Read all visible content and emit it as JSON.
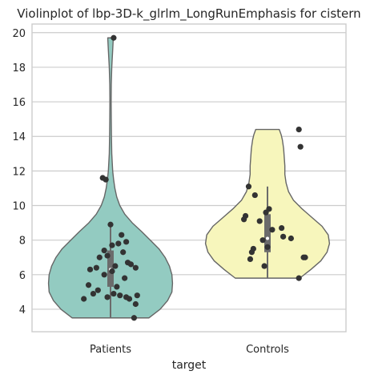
{
  "chart_data": {
    "type": "violin",
    "title": "Violinplot of lbp-3D-k_glrlm_LongRunEmphasis for cistern",
    "xlabel": "target",
    "ylabel": "",
    "ylim": [
      2.7,
      20.5
    ],
    "yticks": [
      4,
      6,
      8,
      10,
      12,
      14,
      16,
      18,
      20
    ],
    "grid": "horizontal",
    "categories": [
      "Patients",
      "Controls"
    ],
    "colors": {
      "Patients": "#93cbc1",
      "Controls": "#f7f6bc",
      "outline": "#666666",
      "box": "#6b6b6b",
      "point": "#333333",
      "grid": "#cccccc",
      "frame": "#cccccc"
    },
    "violins": [
      {
        "category": "Patients",
        "profile": [
          [
            3.5,
            0.62
          ],
          [
            4.0,
            0.8
          ],
          [
            4.5,
            0.92
          ],
          [
            5.0,
            0.99
          ],
          [
            5.5,
            1.0
          ],
          [
            6.0,
            0.99
          ],
          [
            6.5,
            0.95
          ],
          [
            7.0,
            0.88
          ],
          [
            7.5,
            0.78
          ],
          [
            8.0,
            0.64
          ],
          [
            8.5,
            0.5
          ],
          [
            9.0,
            0.35
          ],
          [
            9.5,
            0.23
          ],
          [
            10.0,
            0.15
          ],
          [
            10.5,
            0.1
          ],
          [
            11.0,
            0.07
          ],
          [
            11.5,
            0.05
          ],
          [
            12.0,
            0.035
          ],
          [
            13.0,
            0.02
          ],
          [
            14.0,
            0.015
          ],
          [
            15.0,
            0.012
          ],
          [
            16.0,
            0.01
          ],
          [
            17.0,
            0.012
          ],
          [
            18.0,
            0.02
          ],
          [
            19.0,
            0.035
          ],
          [
            19.7,
            0.045
          ]
        ],
        "box": {
          "q1": 5.3,
          "median": 6.3,
          "q3": 7.4,
          "whisker_low": 3.5,
          "whisker_high": 8.9
        },
        "points": [
          [
            0.02,
            19.7
          ],
          [
            -0.05,
            11.6
          ],
          [
            -0.03,
            11.5
          ],
          [
            0.0,
            8.9
          ],
          [
            0.07,
            8.3
          ],
          [
            0.1,
            7.9
          ],
          [
            0.05,
            7.8
          ],
          [
            0.01,
            7.7
          ],
          [
            -0.04,
            7.4
          ],
          [
            0.08,
            7.3
          ],
          [
            -0.02,
            7.1
          ],
          [
            -0.07,
            7.0
          ],
          [
            0.11,
            6.7
          ],
          [
            0.13,
            6.6
          ],
          [
            0.03,
            6.5
          ],
          [
            -0.09,
            6.4
          ],
          [
            0.16,
            6.4
          ],
          [
            -0.13,
            6.3
          ],
          [
            0.01,
            6.2
          ],
          [
            -0.04,
            6.0
          ],
          [
            0.09,
            5.8
          ],
          [
            -0.14,
            5.4
          ],
          [
            0.04,
            5.3
          ],
          [
            -0.08,
            5.1
          ],
          [
            -0.11,
            4.9
          ],
          [
            0.02,
            4.9
          ],
          [
            0.06,
            4.8
          ],
          [
            0.17,
            4.8
          ],
          [
            -0.02,
            4.7
          ],
          [
            0.1,
            4.7
          ],
          [
            -0.17,
            4.6
          ],
          [
            0.12,
            4.6
          ],
          [
            0.16,
            4.3
          ],
          [
            0.15,
            3.5
          ]
        ]
      },
      {
        "category": "Controls",
        "profile": [
          [
            5.8,
            0.52
          ],
          [
            6.3,
            0.7
          ],
          [
            6.8,
            0.86
          ],
          [
            7.3,
            0.96
          ],
          [
            7.8,
            1.0
          ],
          [
            8.3,
            0.98
          ],
          [
            8.8,
            0.88
          ],
          [
            9.3,
            0.72
          ],
          [
            9.8,
            0.56
          ],
          [
            10.3,
            0.42
          ],
          [
            10.8,
            0.34
          ],
          [
            11.3,
            0.3
          ],
          [
            11.8,
            0.28
          ],
          [
            12.3,
            0.28
          ],
          [
            12.8,
            0.27
          ],
          [
            13.3,
            0.26
          ],
          [
            13.8,
            0.24
          ],
          [
            14.1,
            0.22
          ],
          [
            14.4,
            0.19
          ]
        ],
        "box": {
          "q1": 7.3,
          "median": 8.1,
          "q3": 9.5,
          "whisker_low": 5.8,
          "whisker_high": 11.1
        },
        "points": [
          [
            0.2,
            14.4
          ],
          [
            0.21,
            13.4
          ],
          [
            -0.12,
            11.1
          ],
          [
            -0.08,
            10.6
          ],
          [
            0.01,
            9.8
          ],
          [
            -0.01,
            9.6
          ],
          [
            -0.14,
            9.4
          ],
          [
            -0.15,
            9.2
          ],
          [
            -0.05,
            9.1
          ],
          [
            0.03,
            8.6
          ],
          [
            0.09,
            8.7
          ],
          [
            0.1,
            8.2
          ],
          [
            0.15,
            8.1
          ],
          [
            -0.03,
            8.0
          ],
          [
            0.0,
            7.6
          ],
          [
            -0.09,
            7.5
          ],
          [
            -0.1,
            7.3
          ],
          [
            0.23,
            7.0
          ],
          [
            0.24,
            7.0
          ],
          [
            -0.11,
            6.9
          ],
          [
            -0.02,
            6.5
          ],
          [
            0.2,
            5.8
          ]
        ]
      }
    ]
  }
}
